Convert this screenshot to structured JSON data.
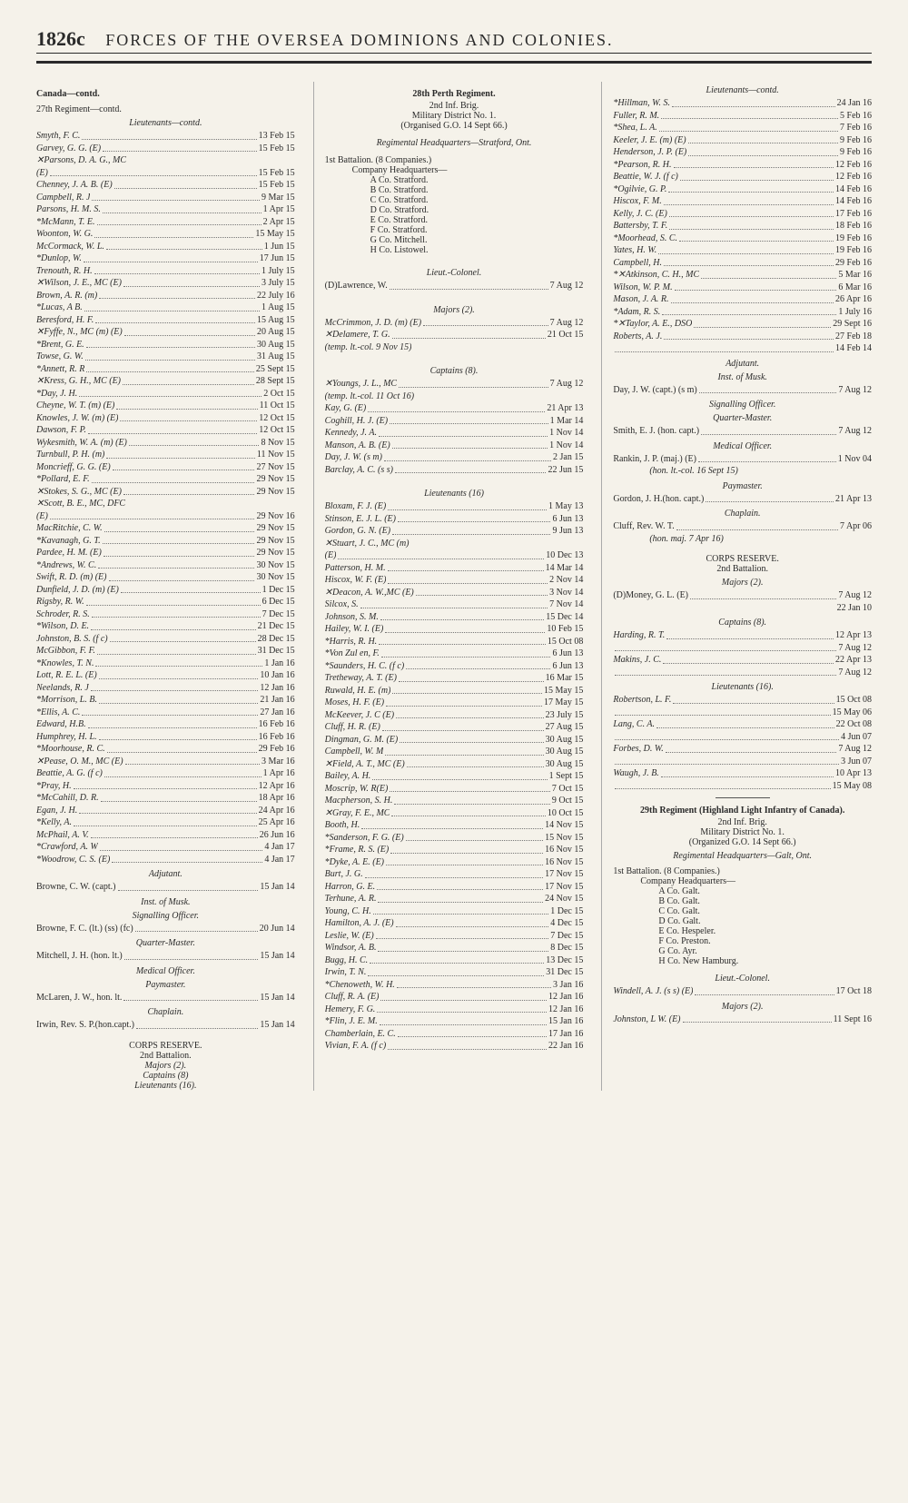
{
  "header": {
    "pageNum": "1826c",
    "title": "FORCES OF THE OVERSEA DOMINIONS AND COLONIES."
  },
  "col1": {
    "canada": "Canada—contd.",
    "reg27": "27th Regiment—contd.",
    "lieuts": "Lieutenants—contd.",
    "entries1": [
      {
        "n": "Smyth, F. C.",
        "d": "13 Feb 15"
      },
      {
        "n": "Garvey, G. G. (E)",
        "d": "15 Feb 15"
      },
      {
        "n": "✕Parsons, D. A. G., MC",
        "d": ""
      },
      {
        "n": "  (E)",
        "d": "15 Feb 15"
      },
      {
        "n": "Chenney, J. A. B. (E)",
        "d": "15 Feb 15"
      },
      {
        "n": "Campbell, R. J",
        "d": "9 Mar 15"
      },
      {
        "n": "Parsons, H. M. S.",
        "d": "1 Apr 15"
      },
      {
        "n": "*McMann, T. E.",
        "d": "2 Apr 15"
      },
      {
        "n": "Woonton, W. G.",
        "d": "15 May 15"
      },
      {
        "n": "McCormack, W. L.",
        "d": "1 Jun 15"
      },
      {
        "n": "*Dunlop, W.",
        "d": "17 Jun 15"
      },
      {
        "n": "Trenouth, R. H.",
        "d": "1 July 15"
      },
      {
        "n": "✕Wilson, J. E., MC (E)",
        "d": "3 July 15"
      },
      {
        "n": "Brown, A. R. (m)",
        "d": "22 July 16"
      },
      {
        "n": "*Lucas, A B.",
        "d": "1 Aug 15"
      },
      {
        "n": "Beresford, H. F.",
        "d": "15 Aug 15"
      },
      {
        "n": "✕Fyffe, N., MC (m) (E)",
        "d": "20 Aug 15"
      },
      {
        "n": "*Brent, G. E.",
        "d": "30 Aug 15"
      },
      {
        "n": "Towse, G. W.",
        "d": "31 Aug 15"
      },
      {
        "n": "*Annett, R. R",
        "d": "25 Sept 15"
      },
      {
        "n": "✕Kress, G. H., MC (E)",
        "d": "28 Sept 15"
      },
      {
        "n": "*Day, J. H.",
        "d": "2 Oct 15"
      },
      {
        "n": "Cheyne, W. T. (m) (E)",
        "d": "11 Oct 15"
      },
      {
        "n": "Knowles, J. W. (m) (E)",
        "d": "12 Oct 15"
      },
      {
        "n": "Dawson, F. P.",
        "d": "12 Oct 15"
      },
      {
        "n": "Wykesmith, W. A. (m) (E)",
        "d": "8 Nov 15"
      },
      {
        "n": "Turnbull, P. H. (m)",
        "d": "11 Nov 15"
      },
      {
        "n": "Moncrieff, G. G. (E)",
        "d": "27 Nov 15"
      },
      {
        "n": "*Pollard, E. F.",
        "d": "29 Nov 15"
      },
      {
        "n": "✕Stokes, S. G., MC (E)",
        "d": "29 Nov 15"
      },
      {
        "n": "✕Scott, B. E., MC, DFC",
        "d": ""
      },
      {
        "n": "  (E)",
        "d": "29 Nov 16"
      },
      {
        "n": "MacRitchie, C. W.",
        "d": "29 Nov 15"
      },
      {
        "n": "*Kavanagh, G. T.",
        "d": "29 Nov 15"
      },
      {
        "n": "Pardee, H. M. (E)",
        "d": "29 Nov 15"
      },
      {
        "n": "*Andrews, W. C.",
        "d": "30 Nov 15"
      },
      {
        "n": "Swift, R. D. (m) (E)",
        "d": "30 Nov 15"
      },
      {
        "n": "Dunfield, J. D. (m) (E)",
        "d": "1 Dec 15"
      },
      {
        "n": "Rigsby, R. W.",
        "d": "6 Dec 15"
      },
      {
        "n": "Schroder, R. S.",
        "d": "7 Dec 15"
      },
      {
        "n": "*Wilson, D. E.",
        "d": "21 Dec 15"
      },
      {
        "n": "Johnston, B. S. (f c)",
        "d": "28 Dec 15"
      },
      {
        "n": "McGibbon, F. F.",
        "d": "31 Dec 15"
      },
      {
        "n": "*Knowles, T. N.",
        "d": "1 Jan 16"
      },
      {
        "n": "Lott, R. E. L. (E)",
        "d": "10 Jan 16"
      },
      {
        "n": "Neelands, R. J",
        "d": "12 Jan 16"
      },
      {
        "n": "*Morrison, L. B.",
        "d": "21 Jan 16"
      },
      {
        "n": "*Ellis, A. C.",
        "d": "27 Jan 16"
      },
      {
        "n": "Edward, H.B.",
        "d": "16 Feb 16"
      },
      {
        "n": "Humphrey, H. L.",
        "d": "16 Feb 16"
      },
      {
        "n": "*Moorhouse, R. C.",
        "d": "29 Feb 16"
      },
      {
        "n": "✕Pease, O. M., MC (E)",
        "d": "3 Mar 16"
      },
      {
        "n": "Beattie, A. G. (f c)",
        "d": "1 Apr 16"
      },
      {
        "n": "*Pray, H.",
        "d": "12 Apr 16"
      },
      {
        "n": "*McCahill, D. R.",
        "d": "18 Apr 16"
      },
      {
        "n": "Egan, J. H.",
        "d": "24 Apr 16"
      },
      {
        "n": "*Kelly, A.",
        "d": "25 Apr 16"
      },
      {
        "n": "McPhail, A. V.",
        "d": "26 Jun 16"
      },
      {
        "n": "*Crawford, A. W",
        "d": "4 Jan 17"
      },
      {
        "n": "*Woodrow, C. S. (E)",
        "d": "4 Jan 17"
      }
    ],
    "adjutant": "Adjutant.",
    "adjEntry": {
      "n": "Browne, C. W. (capt.)",
      "d": "15 Jan 14"
    },
    "instMusk": "Inst. of Musk.",
    "sigOff": "Signalling Officer.",
    "sigEntry": {
      "n": "Browne, F. C. (lt.) (ss) (fc)",
      "d": "20 Jun 14"
    },
    "qm": "Quarter-Master.",
    "qmEntry": {
      "n": "Mitchell, J. H. (hon. lt.)",
      "d": "15 Jan 14"
    },
    "medOff": "Medical Officer.",
    "paymaster": "Paymaster.",
    "payEntry": {
      "n": "McLaren, J. W., hon. lt.",
      "d": "15 Jan 14"
    },
    "chaplain": "Chaplain.",
    "chapEntry": {
      "n": "Irwin, Rev. S. P.(hon.capt.)",
      "d": "15 Jan 14"
    },
    "corpsRes": "CORPS RESERVE.",
    "bn2": "2nd Battalion.",
    "majors2": "Majors (2).",
    "captains8": "Captains (8)",
    "lieuts16": "Lieutenants (16)."
  },
  "col2": {
    "reg28": "28th Perth Regiment.",
    "brig": "2nd Inf. Brig.",
    "mildist": "Military District No. 1.",
    "org": "(Organised G.O. 14 Sept 66.)",
    "rhq": "Regimental Headquarters—Stratford, Ont.",
    "bn1": "1st Battalion. (8 Companies.)",
    "cohq": "Company Headquarters—",
    "companies": [
      "A Co. Stratford.",
      "B Co. Stratford.",
      "C Co. Stratford.",
      "D Co. Stratford.",
      "E Co. Stratford.",
      "F Co. Stratford.",
      "G Co. Mitchell.",
      "H Co. Listowel."
    ],
    "ltcol": "Lieut.-Colonel.",
    "ltcolEntry": {
      "n": "(D)Lawrence, W.",
      "d": "7 Aug 12"
    },
    "majors": "Majors (2).",
    "majEntries": [
      {
        "n": "McCrimmon, J. D. (m) (E)",
        "d": "7 Aug 12"
      },
      {
        "n": "✕Delamere, T. G.",
        "d": "21 Oct 15"
      },
      {
        "n": "  (temp. lt.-col. 9 Nov 15)",
        "d": ""
      }
    ],
    "captains": "Captains (8).",
    "capEntries": [
      {
        "n": "✕Youngs, J. L., MC",
        "d": "7 Aug 12"
      },
      {
        "n": "  (temp. lt.-col. 11 Oct 16)",
        "d": ""
      },
      {
        "n": "Kay, G. (E)",
        "d": "21 Apr 13"
      },
      {
        "n": "Coghill, H. J. (E)",
        "d": "1 Mar 14"
      },
      {
        "n": "Kennedy, J. A.",
        "d": "1 Nov 14"
      },
      {
        "n": "Manson, A. B. (E)",
        "d": "1 Nov 14"
      },
      {
        "n": "Day, J. W. (s m)",
        "d": "2 Jan 15"
      },
      {
        "n": "Barclay, A. C. (s s)",
        "d": "22 Jun 15"
      }
    ],
    "lieuts": "Lieutenants (16)",
    "ltEntries": [
      {
        "n": "Bloxam, F. J. (E)",
        "d": "1 May 13"
      },
      {
        "n": "Stinson, E. J. L. (E)",
        "d": "6 Jun 13"
      },
      {
        "n": "Gordon, G. N. (E)",
        "d": "9 Jun 13"
      },
      {
        "n": "✕Stuart, J. C., MC (m)",
        "d": ""
      },
      {
        "n": "  (E)",
        "d": "10 Dec 13"
      },
      {
        "n": "Patterson, H. M.",
        "d": "14 Mar 14"
      },
      {
        "n": "Hiscox, W. F. (E)",
        "d": "2 Nov 14"
      },
      {
        "n": "✕Deacon, A. W.,MC (E)",
        "d": "3 Nov 14"
      },
      {
        "n": "Silcox, S.",
        "d": "7 Nov 14"
      },
      {
        "n": "Johnson, S. M.",
        "d": "15 Dec 14"
      },
      {
        "n": "Hailey, W. I. (E)",
        "d": "10 Feb 15"
      },
      {
        "n": "*Harris, R. H.",
        "d": "15 Oct 08"
      },
      {
        "n": "*Von Zul en, F.",
        "d": "6 Jun 13"
      },
      {
        "n": "*Saunders, H. C. (f c)",
        "d": "6 Jun 13"
      },
      {
        "n": "Tretheway, A. T. (E)",
        "d": "16 Mar 15"
      },
      {
        "n": "Ruwald, H. E. (m)",
        "d": "15 May 15"
      },
      {
        "n": "Moses, H. F. (E)",
        "d": "17 May 15"
      },
      {
        "n": "McKeever, J. C (E)",
        "d": "23 July 15"
      },
      {
        "n": "Cluff, H. R. (E)",
        "d": "27 Aug 15"
      },
      {
        "n": "Dingman, G. M. (E)",
        "d": "30 Aug 15"
      },
      {
        "n": "Campbell, W. M",
        "d": "30 Aug 15"
      },
      {
        "n": "✕Field, A. T., MC (E)",
        "d": "30 Aug 15"
      },
      {
        "n": "Bailey, A. H.",
        "d": "1 Sept 15"
      },
      {
        "n": "Moscrip, W. R(E)",
        "d": "7 Oct 15"
      },
      {
        "n": "Macpherson, S. H.",
        "d": "9 Oct 15"
      },
      {
        "n": "✕Gray, F. E., MC",
        "d": "10 Oct 15"
      },
      {
        "n": "Booth, H.",
        "d": "14 Nov 15"
      },
      {
        "n": "*Sanderson, F. G. (E)",
        "d": "15 Nov 15"
      },
      {
        "n": "*Frame, R. S. (E)",
        "d": "16 Nov 15"
      },
      {
        "n": "*Dyke, A. E. (E)",
        "d": "16 Nov 15"
      },
      {
        "n": "Burt, J. G.",
        "d": "17 Nov 15"
      },
      {
        "n": "Harron, G. E.",
        "d": "17 Nov 15"
      },
      {
        "n": "Terhune, A. R.",
        "d": "24 Nov 15"
      },
      {
        "n": "Young, C. H.",
        "d": "1 Dec 15"
      },
      {
        "n": "Hamilton, A. J. (E)",
        "d": "4 Dec 15"
      },
      {
        "n": "Leslie, W. (E)",
        "d": "7 Dec 15"
      },
      {
        "n": "Windsor, A. B.",
        "d": "8 Dec 15"
      },
      {
        "n": "Bugg, H. C.",
        "d": "13 Dec 15"
      },
      {
        "n": "Irwin, T. N.",
        "d": "31 Dec 15"
      },
      {
        "n": "*Chenoweth, W. H.",
        "d": "3 Jan 16"
      },
      {
        "n": "Cluff, R. A. (E)",
        "d": "12 Jan 16"
      },
      {
        "n": "Hemery, F. G.",
        "d": "12 Jan 16"
      },
      {
        "n": "*Flin, J. E. M.",
        "d": "15 Jan 16"
      },
      {
        "n": "Chamberlain, E. C.",
        "d": "17 Jan 16"
      },
      {
        "n": "Vivian, F. A. (f c)",
        "d": "22 Jan 16"
      }
    ]
  },
  "col3": {
    "lieutsContd": "Lieutenants—contd.",
    "ltEntries": [
      {
        "n": "*Hillman, W. S.",
        "d": "24 Jan 16"
      },
      {
        "n": "Fuller, R. M.",
        "d": "5 Feb 16"
      },
      {
        "n": "*Shea, L. A.",
        "d": "7 Feb 16"
      },
      {
        "n": "Keeler, J. E. (m) (E)",
        "d": "9 Feb 16"
      },
      {
        "n": "Henderson, J. P. (E)",
        "d": "9 Feb 16"
      },
      {
        "n": "*Pearson, R. H.",
        "d": "12 Feb 16"
      },
      {
        "n": "Beattie, W. J. (f c)",
        "d": "12 Feb 16"
      },
      {
        "n": "*Ogilvie, G. P.",
        "d": "14 Feb 16"
      },
      {
        "n": "Hiscox, F. M.",
        "d": "14 Feb 16"
      },
      {
        "n": "Kelly, J. C. (E)",
        "d": "17 Feb 16"
      },
      {
        "n": "Battersby, T. F.",
        "d": "18 Feb 16"
      },
      {
        "n": "*Moorhead, S. C.",
        "d": "19 Feb 16"
      },
      {
        "n": "Yates, H. W.",
        "d": "19 Feb 16"
      },
      {
        "n": "Campbell, H.",
        "d": "29 Feb 16"
      },
      {
        "n": "*✕Atkinson, C. H., MC",
        "d": "5 Mar 16"
      },
      {
        "n": "Wilson, W. P. M.",
        "d": "6 Mar 16"
      },
      {
        "n": "Mason, J. A. R.",
        "d": "26 Apr 16"
      },
      {
        "n": "*Adam, R. S.",
        "d": "1 July 16"
      },
      {
        "n": "*✕Taylor, A. E., DSO",
        "d": "29 Sept 16"
      },
      {
        "n": "Roberts, A. J.",
        "d": "27 Feb 18"
      },
      {
        "n": "",
        "d": "14 Feb 14"
      }
    ],
    "adjutant": "Adjutant.",
    "instMusk": "Inst. of Musk.",
    "instEntry": {
      "n": "Day, J. W. (capt.) (s m)",
      "d": "7 Aug 12"
    },
    "sigOff": "Signalling Officer.",
    "qm": "Quarter-Master.",
    "qmEntry": {
      "n": "Smith, E. J. (hon. capt.)",
      "d": "7 Aug 12"
    },
    "medOff": "Medical Officer.",
    "medEntry": {
      "n": "Rankin, J. P. (maj.) (E)",
      "d": "1 Nov 04"
    },
    "medEntry2": {
      "n": "(hon. lt.-col. 16 Sept 15)",
      "d": ""
    },
    "paymaster": "Paymaster.",
    "payEntry": {
      "n": "Gordon, J. H.(hon. capt.)",
      "d": "21 Apr 13"
    },
    "chaplain": "Chaplain.",
    "chapEntry": {
      "n": "Cluff, Rev. W. T.",
      "d": "7 Apr 06"
    },
    "chapEntry2": {
      "n": "(hon. maj. 7 Apr 16)",
      "d": ""
    },
    "corpsRes": "CORPS RESERVE.",
    "bn2": "2nd Battalion.",
    "majors2": "Majors (2).",
    "majEntry": {
      "n": "(D)Money, G. L. (E)",
      "d": "7 Aug 12"
    },
    "majEntry2": {
      "n": "",
      "d": "22 Jan 10"
    },
    "captains8": "Captains (8).",
    "capEntries": [
      {
        "n": "Harding, R. T.",
        "d": "12 Apr 13"
      },
      {
        "n": "",
        "d": "7 Aug 12"
      },
      {
        "n": "Makins, J. C.",
        "d": "22 Apr 13"
      },
      {
        "n": "",
        "d": "7 Aug 12"
      }
    ],
    "lieuts16": "Lieutenants (16).",
    "lt16Entries": [
      {
        "n": "Robertson, L. F.",
        "d": "15 Oct 08"
      },
      {
        "n": "",
        "d": "15 May 06"
      },
      {
        "n": "Lang, C. A.",
        "d": "22 Oct 08"
      },
      {
        "n": "",
        "d": "4 Jun 07"
      },
      {
        "n": "Forbes, D. W.",
        "d": "7 Aug 12"
      },
      {
        "n": "",
        "d": "3 Jun 07"
      },
      {
        "n": "Waugh, J. B.",
        "d": "10 Apr 13"
      },
      {
        "n": "",
        "d": "15 May 08"
      }
    ],
    "reg29title": "29th Regiment (Highland Light Infantry of Canada).",
    "brig29": "2nd Inf. Brig.",
    "mildist29": "Military District No. 1.",
    "org29": "(Organized G.O. 14 Sept 66.)",
    "rhq29": "Regimental Headquarters—Galt, Ont.",
    "bn1_29": "1st Battalion. (8 Companies.)",
    "cohq29": "Company Headquarters—",
    "companies29": [
      "A Co. Galt.",
      "B Co. Galt.",
      "C Co. Galt.",
      "D Co. Galt.",
      "E Co. Hespeler.",
      "F Co. Preston.",
      "G Co. Ayr.",
      "H Co. New Hamburg."
    ],
    "ltcol29": "Lieut.-Colonel.",
    "ltcolEntry29": {
      "n": "Windell, A. J. (s s) (E)",
      "d": "17 Oct 18"
    },
    "majors29": "Majors (2).",
    "majEntry29": {
      "n": "Johnston, L W. (E)",
      "d": "11 Sept 16"
    }
  }
}
